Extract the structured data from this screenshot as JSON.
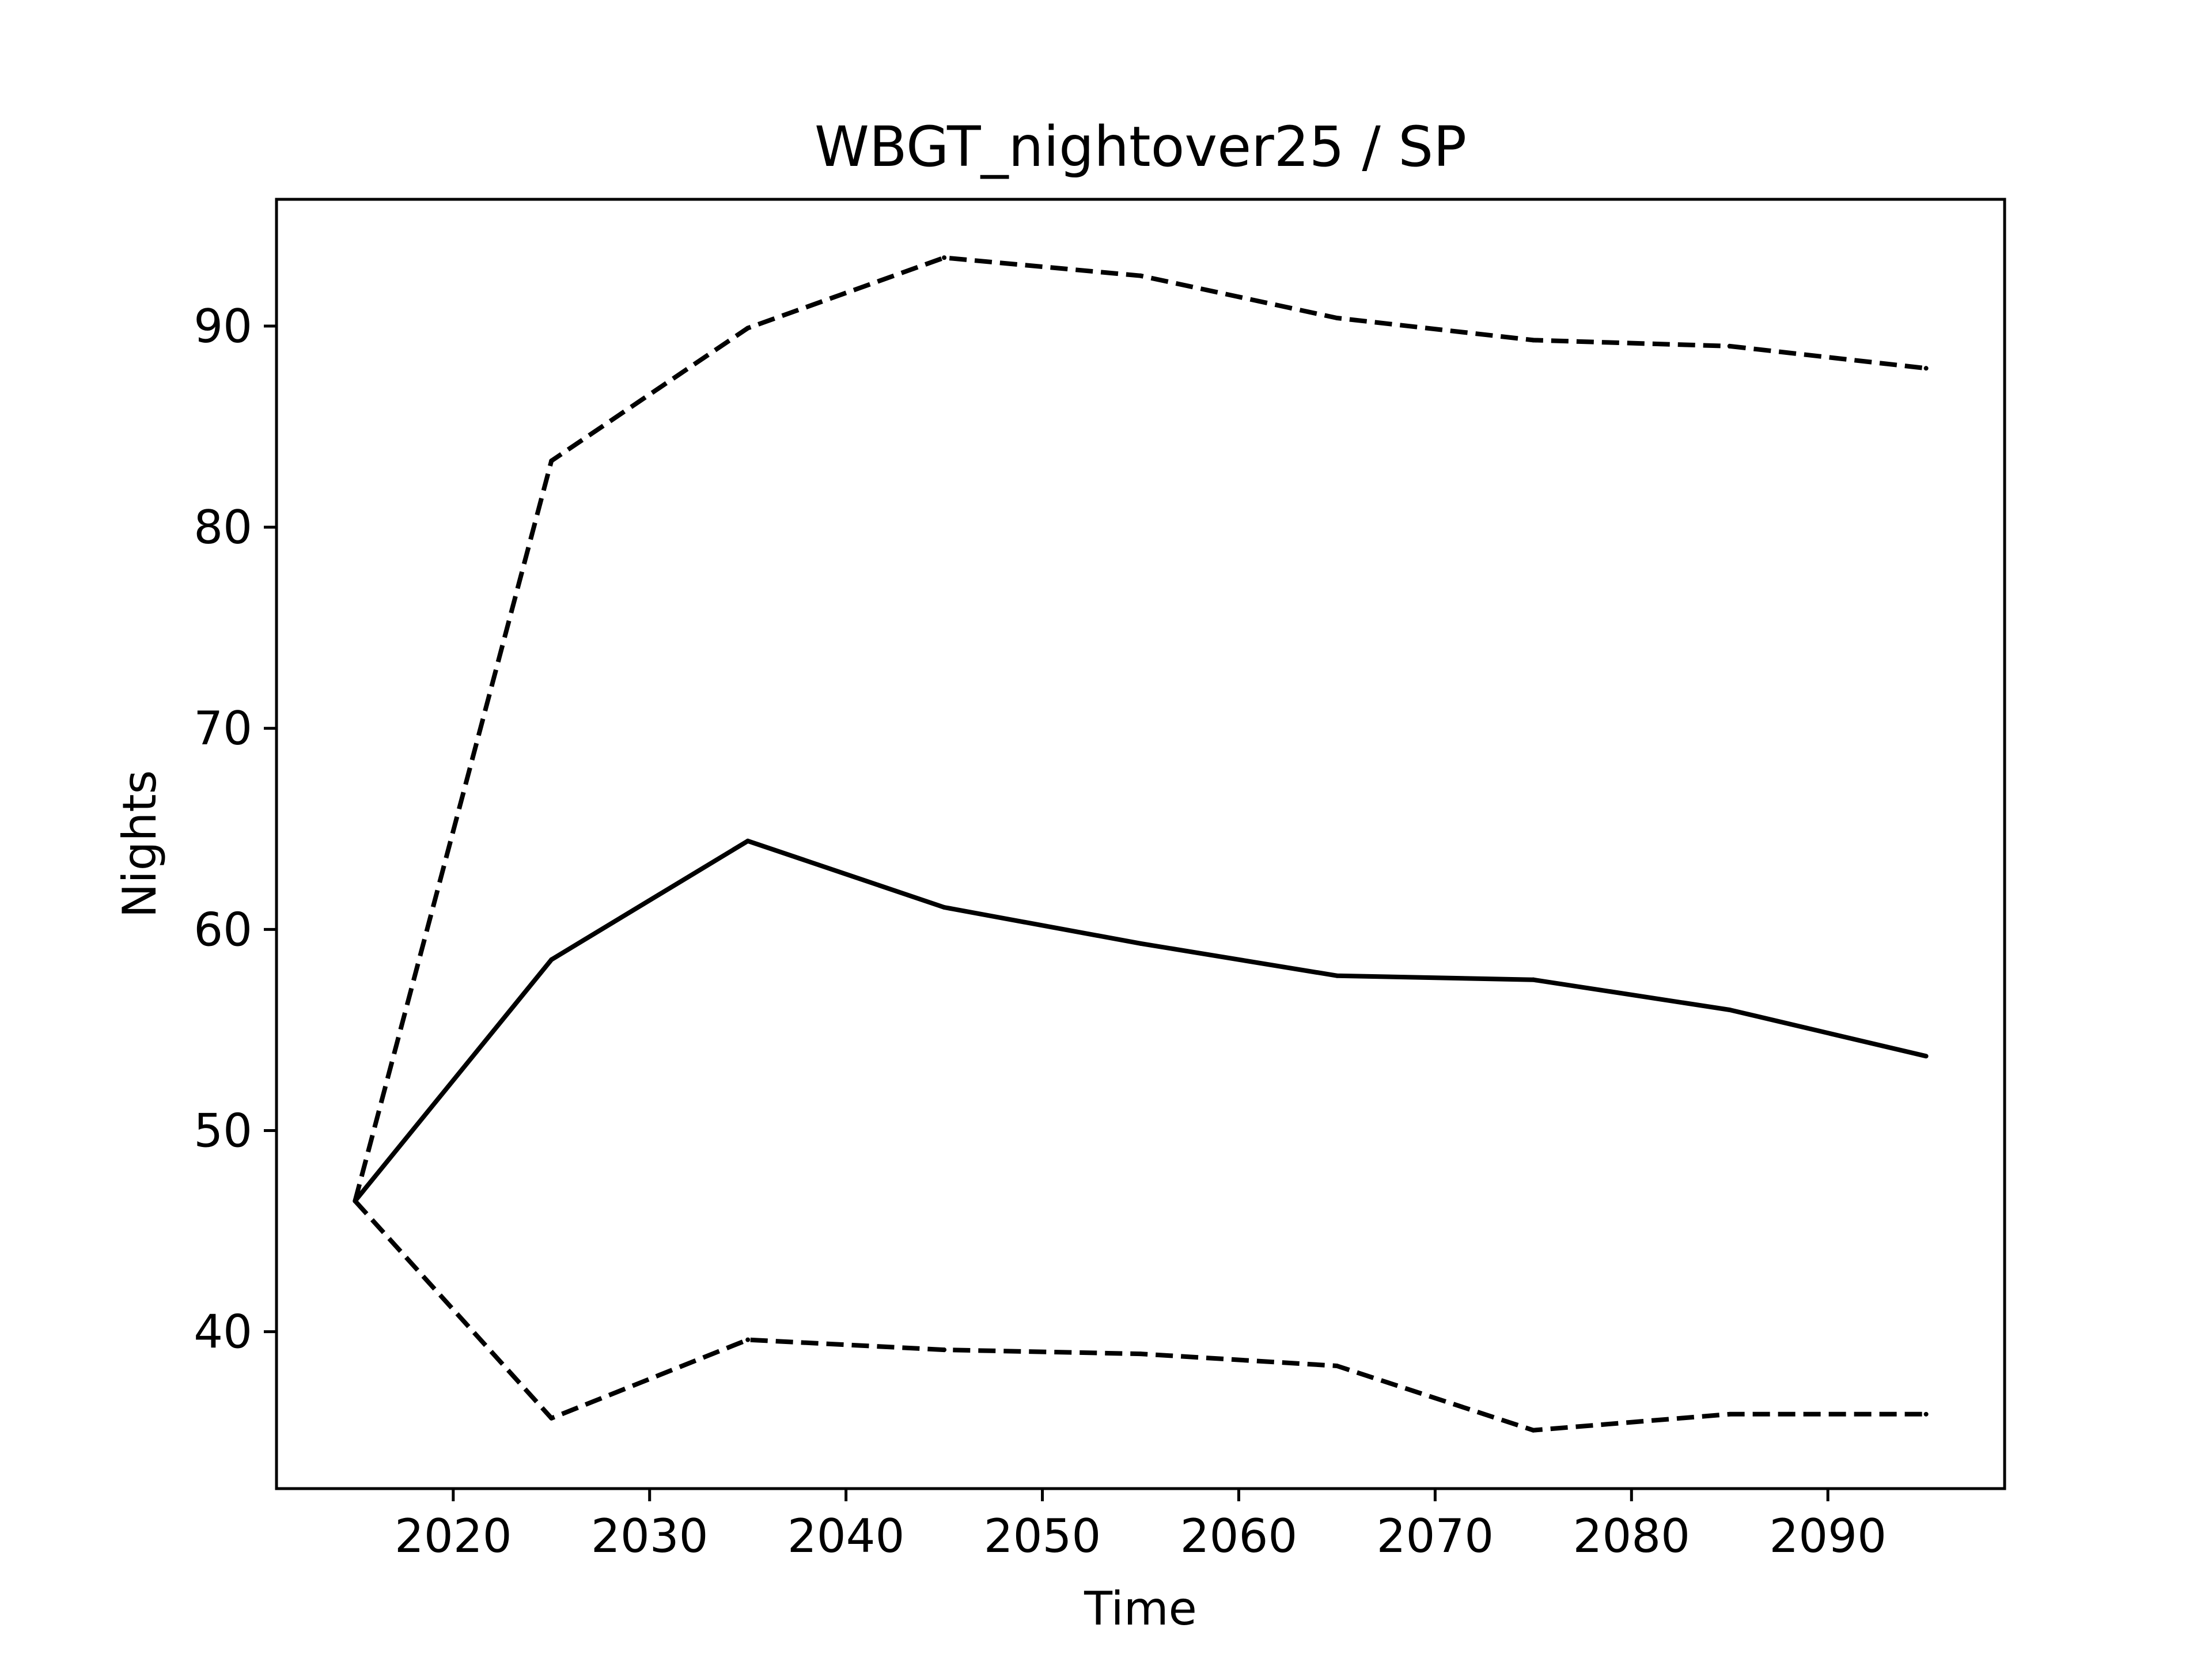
{
  "chart_data": {
    "type": "line",
    "title": "WBGT_nightover25 / SP",
    "xlabel": "Time",
    "ylabel": "Nights",
    "xlim": [
      2011,
      2099
    ],
    "ylim": [
      32.2,
      96.3
    ],
    "xticks": [
      2020,
      2030,
      2040,
      2050,
      2060,
      2070,
      2080,
      2090
    ],
    "yticks": [
      40,
      50,
      60,
      70,
      80,
      90
    ],
    "grid": false,
    "legend": "none",
    "x": [
      2015,
      2025,
      2035,
      2045,
      2055,
      2065,
      2075,
      2085,
      2095
    ],
    "series": [
      {
        "style": "solid",
        "color": "#000000",
        "values": [
          46.5,
          58.5,
          64.4,
          61.1,
          59.3,
          57.7,
          57.5,
          56.0,
          53.7
        ]
      },
      {
        "style": "dashed",
        "color": "#000000",
        "values": [
          46.5,
          83.3,
          89.9,
          93.4,
          92.5,
          90.4,
          89.3,
          89.0,
          87.9
        ]
      },
      {
        "style": "dashed",
        "color": "#000000",
        "values": [
          46.5,
          35.7,
          39.6,
          39.1,
          38.9,
          38.3,
          35.1,
          35.9,
          35.9
        ]
      }
    ]
  }
}
